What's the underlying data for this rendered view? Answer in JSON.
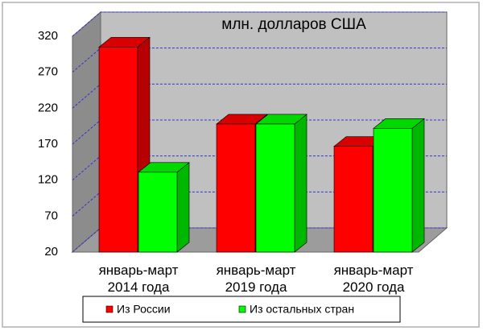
{
  "chart_data": {
    "type": "bar3d",
    "title": "млн. долларов США",
    "categories": [
      "январь-март 2014 года",
      "январь-март 2019 года",
      "январь-март 2020 года"
    ],
    "series": [
      {
        "name": "Из России",
        "color": "#ff0000",
        "values": [
          305,
          198,
          167
        ]
      },
      {
        "name": "Из остальных стран",
        "color": "#00ff00",
        "values": [
          131,
          198,
          192
        ]
      }
    ],
    "ylim": [
      20,
      320
    ],
    "yticks": [
      20,
      70,
      120,
      170,
      220,
      270,
      320
    ],
    "grid": true
  }
}
